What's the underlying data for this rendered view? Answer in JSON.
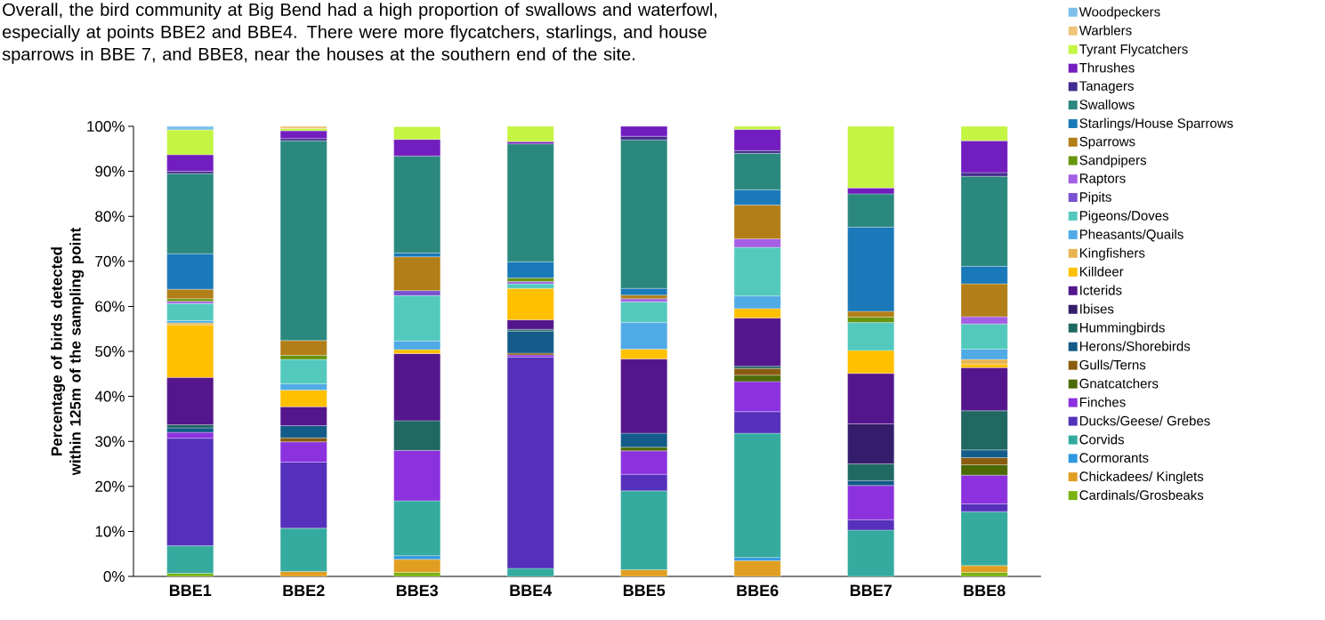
{
  "chart_data": {
    "type": "bar",
    "stacked": true,
    "annotations": [
      "Overall, the bird community at Big Bend had a high proportion of swallows and waterfowl, especially at points BBE2 and BBE4. There were more flycatchers, starlings, and house sparrows in BBE 7, and BBE8, near the houses at the southern end of the site."
    ],
    "ylabel": "Percentage of birds detected within 125m of the sampling point",
    "categories": [
      "BBE1",
      "BBE2",
      "BBE3",
      "BBE4",
      "BBE5",
      "BBE6",
      "BBE7",
      "BBE8"
    ],
    "ylim": [
      0,
      100
    ],
    "yticks": [
      {
        "value": 0,
        "label": "0%"
      },
      {
        "value": 10,
        "label": "10%"
      },
      {
        "value": 20,
        "label": "20%"
      },
      {
        "value": 30,
        "label": "30%"
      },
      {
        "value": 40,
        "label": "40%"
      },
      {
        "value": 50,
        "label": "50%"
      },
      {
        "value": 60,
        "label": "60%"
      },
      {
        "value": 70,
        "label": "70%"
      },
      {
        "value": 80,
        "label": "80%"
      },
      {
        "value": 90,
        "label": "90%"
      },
      {
        "value": 100,
        "label": "100%"
      }
    ],
    "legend": "right",
    "series": [
      {
        "name": "Cardinals/Grosbeaks",
        "color": "#7ab313",
        "values": [
          0.7,
          0,
          0.9,
          0,
          0,
          0,
          0,
          0.9
        ]
      },
      {
        "name": "Chickadees/ Kinglets",
        "color": "#e19f22",
        "values": [
          0,
          1.1,
          2.9,
          0,
          1.5,
          3.5,
          0,
          1.5
        ]
      },
      {
        "name": "Cormorants",
        "color": "#2f98e0",
        "values": [
          0,
          0,
          0.8,
          0,
          0,
          0.7,
          0,
          0
        ]
      },
      {
        "name": "Corvids",
        "color": "#35aba0",
        "values": [
          6.1,
          9.6,
          12.2,
          1.8,
          17.5,
          27.6,
          10.3,
          12.0
        ]
      },
      {
        "name": "Ducks/Geese/ Grebes",
        "color": "#5430bb",
        "values": [
          23.9,
          14.7,
          0,
          46.9,
          3.7,
          4.8,
          2.3,
          1.7
        ]
      },
      {
        "name": "Finches",
        "color": "#8b32de",
        "values": [
          1.3,
          4.5,
          11.2,
          0.5,
          5.2,
          6.7,
          7.6,
          6.4
        ]
      },
      {
        "name": "Gnatcatchers",
        "color": "#4b6a04",
        "values": [
          0,
          0,
          0,
          0,
          0.8,
          1.4,
          0,
          2.3
        ]
      },
      {
        "name": "Gulls/Terns",
        "color": "#8a5c10",
        "values": [
          0,
          0.9,
          0,
          0.4,
          0,
          1.5,
          0,
          1.6
        ]
      },
      {
        "name": "Herons/Shorebirds",
        "color": "#135b89",
        "values": [
          1.0,
          2.7,
          0,
          4.9,
          3.1,
          0,
          1.1,
          1.7
        ]
      },
      {
        "name": "Hummingbirds",
        "color": "#206862",
        "values": [
          0.7,
          0,
          6.6,
          0.4,
          0,
          0.5,
          3.7,
          8.7
        ]
      },
      {
        "name": "Ibises",
        "color": "#341e6b",
        "values": [
          0,
          0,
          0,
          0,
          0,
          0,
          8.9,
          0
        ]
      },
      {
        "name": "Icterids",
        "color": "#54168c",
        "values": [
          10.5,
          4.2,
          14.9,
          2.1,
          16.5,
          10.7,
          11.2,
          9.6
        ]
      },
      {
        "name": "Killdeer",
        "color": "#ffc000",
        "values": [
          11.7,
          3.7,
          0.9,
          7.0,
          2.2,
          2.1,
          5.1,
          0.8
        ]
      },
      {
        "name": "Kingfishers",
        "color": "#e8b450",
        "values": [
          0.4,
          0,
          0,
          0,
          0,
          0,
          0,
          1.0
        ]
      },
      {
        "name": "Pheasants/Quails",
        "color": "#50aae6",
        "values": [
          0.5,
          1.4,
          1.9,
          0,
          5.9,
          2.8,
          0,
          2.3
        ]
      },
      {
        "name": "Pigeons/Doves",
        "color": "#53c9bd",
        "values": [
          3.8,
          5.4,
          10.1,
          1.0,
          4.6,
          10.8,
          6.2,
          5.6
        ]
      },
      {
        "name": "Pipits",
        "color": "#7751d1",
        "values": [
          0,
          0,
          1.1,
          0,
          0,
          0,
          0,
          0
        ]
      },
      {
        "name": "Raptors",
        "color": "#a45fe4",
        "values": [
          0.5,
          0,
          0,
          0.5,
          0.7,
          1.9,
          0,
          1.6
        ]
      },
      {
        "name": "Sandpipers",
        "color": "#66950e",
        "values": [
          0.6,
          0.9,
          0,
          0.8,
          0,
          0,
          1.2,
          0
        ]
      },
      {
        "name": "Sparrows",
        "color": "#b27e18",
        "values": [
          2.1,
          3.3,
          7.5,
          0,
          0.8,
          7.5,
          1.3,
          7.3
        ]
      },
      {
        "name": "Starlings/House Sparrows",
        "color": "#1a79b8",
        "values": [
          7.9,
          0,
          0.9,
          3.6,
          1.5,
          3.4,
          18.7,
          3.9
        ]
      },
      {
        "name": "Swallows",
        "color": "#2a887e",
        "values": [
          17.8,
          44.4,
          21.5,
          26.2,
          33.0,
          8.1,
          7.4,
          20.0
        ]
      },
      {
        "name": "Tanagers",
        "color": "#432c8f",
        "values": [
          0.5,
          0.5,
          0,
          0,
          0.8,
          0.6,
          0,
          0.8
        ]
      },
      {
        "name": "Thrushes",
        "color": "#721dbf",
        "values": [
          3.7,
          1.7,
          3.7,
          0.5,
          2.2,
          4.7,
          1.3,
          7.1
        ]
      },
      {
        "name": "Tyrant Flycatchers",
        "color": "#c4f542",
        "values": [
          5.5,
          0.5,
          2.8,
          3.4,
          0,
          0.7,
          13.7,
          3.2
        ]
      },
      {
        "name": "Warblers",
        "color": "#eec57a",
        "values": [
          0,
          0.5,
          0,
          0,
          0,
          0,
          0,
          0
        ]
      },
      {
        "name": "Woodpeckers",
        "color": "#7cc0ea",
        "values": [
          0.8,
          0,
          0,
          0,
          0,
          0,
          0,
          0
        ]
      }
    ]
  }
}
